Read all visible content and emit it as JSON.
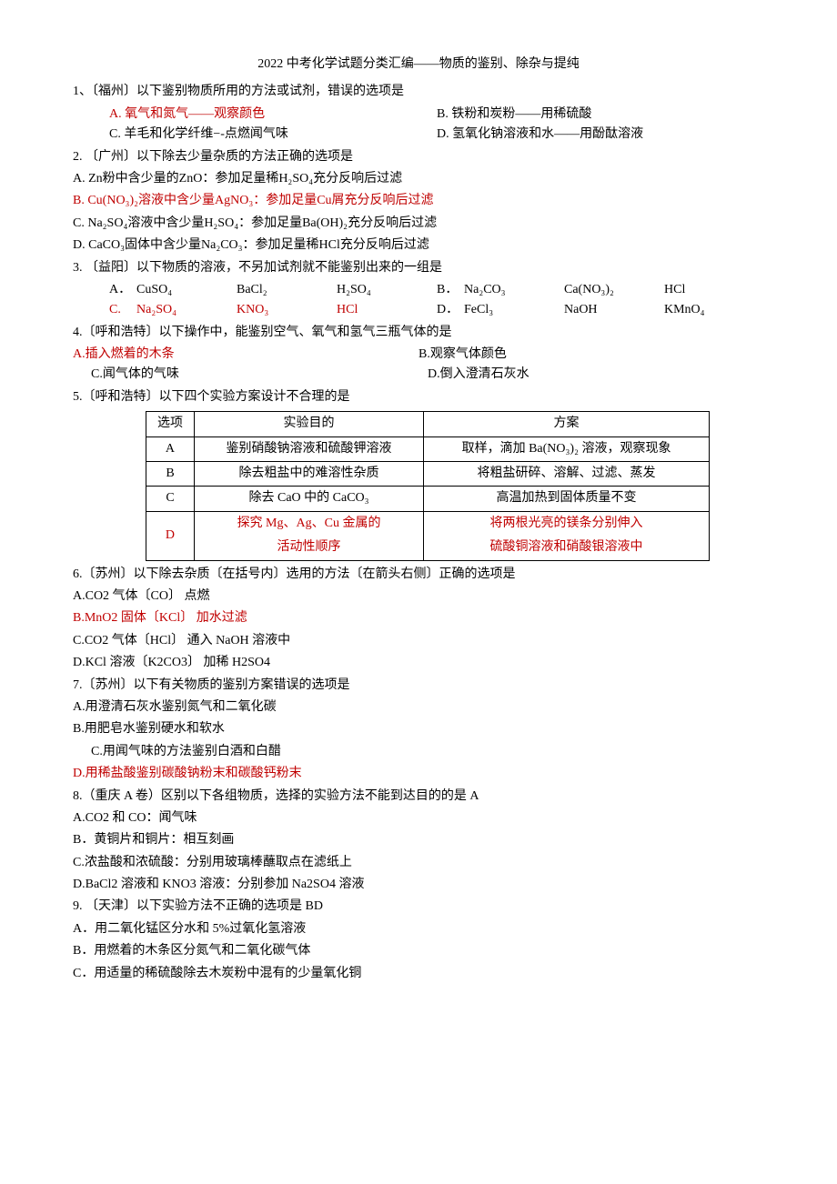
{
  "title": "2022 中考化学试题分类汇编——物质的鉴别、除杂与提纯",
  "q1": {
    "stem": "1、〔福州〕以下鉴别物质所用的方法或试剂，错误的选项是",
    "a": "A.  氧气和氮气——观察颜色",
    "b": "B.  铁粉和炭粉——用稀硫酸",
    "c": "C.  羊毛和化学纤维−-点燃闻气味",
    "d": "D.  氢氧化钠溶液和水——用酚酞溶液"
  },
  "q2": {
    "stem": "2.  〔广州〕以下除去少量杂质的方法正确的选项是",
    "a": "A. Zn粉中含少量的ZnO：参加足量稀H₂SO₄充分反响后过滤",
    "b": "B. Cu(NO₃)₂溶液中含少量AgNO₃：参加足量Cu屑充分反响后过滤",
    "c": "C. Na₂SO₄溶液中含少量H₂SO₄：参加足量Ba(OH)₂充分反响后过滤",
    "d": "D. CaCO₃固体中含少量Na₂CO₃：参加足量稀HCl充分反响后过滤"
  },
  "q3": {
    "stem": "3.  〔益阳〕以下物质的溶液，不另加试剂就不能鉴别出来的一组是",
    "rowA": {
      "lbl": "A．",
      "c1": "CuSO₄",
      "c2": "BaCl₂",
      "c3": "H₂SO₄"
    },
    "rowB": {
      "lbl": "B．",
      "c1": "Na₂CO₃",
      "c2": "Ca(NO₃)₂",
      "c3": "HCl"
    },
    "rowC": {
      "lbl": "C.",
      "c1": "Na₂SO₄",
      "c2": "KNO₃",
      "c3": "HCl"
    },
    "rowD": {
      "lbl": "D．",
      "c1": "FeCl₃",
      "c2": "NaOH",
      "c3": "KMnO₄"
    }
  },
  "q4": {
    "stem": "4.〔呼和浩特〕以下操作中，能鉴别空气、氧气和氢气三瓶气体的是",
    "a": "A.插入燃着的木条",
    "b": "B.观察气体颜色",
    "c": "C.闻气体的气味",
    "d": "D.倒入澄清石灰水"
  },
  "q5": {
    "stem": "5.〔呼和浩特〕以下四个实验方案设计不合理的是",
    "table_cols": [
      "选项",
      "实验目的",
      "方案"
    ],
    "rows": [
      {
        "opt": "A",
        "purpose": "鉴别硝酸钠溶液和硫酸钾溶液",
        "plan": "取样，滴加 Ba(NO₃)₂ 溶液，观察现象",
        "red": false
      },
      {
        "opt": "B",
        "purpose": "除去粗盐中的难溶性杂质",
        "plan": "将粗盐研碎、溶解、过滤、蒸发",
        "red": false
      },
      {
        "opt": "C",
        "purpose": "除去 CaO 中的 CaCO₃",
        "plan": "高温加热到固体质量不变",
        "red": false
      }
    ],
    "rowD": {
      "opt": "D",
      "purpose1": "探究 Mg、Ag、Cu 金属的",
      "purpose2": "活动性顺序",
      "plan1": "将两根光亮的镁条分别伸入",
      "plan2": "硫酸铜溶液和硝酸银溶液中"
    }
  },
  "q6": {
    "stem": "6.〔苏州〕以下除去杂质〔在括号内〕选用的方法〔在箭头右侧〕正确的选项是",
    "a": "A.CO2 气体〔CO〕    点燃",
    "b": "B.MnO2 固体〔KCl〕    加水过滤",
    "c": "C.CO2 气体〔HCl〕    通入 NaOH 溶液中",
    "d": "D.KCl 溶液〔K2CO3〕    加稀 H2SO4"
  },
  "q7": {
    "stem": "7.〔苏州〕以下有关物质的鉴别方案错误的选项是",
    "a": "A.用澄清石灰水鉴别氮气和二氧化碳",
    "b": "B.用肥皂水鉴别硬水和软水",
    "c": "C.用闻气味的方法鉴别白酒和白醋",
    "d": "D.用稀盐酸鉴别碳酸钠粉末和碳酸钙粉末"
  },
  "q8": {
    "stem": "8.（重庆 A 卷）区别以下各组物质，选择的实验方法不能到达目的的是 A",
    "a": "A.CO2 和 CO：闻气味",
    "b": "B．黄铜片和铜片：相互刻画",
    "c": "C.浓盐酸和浓硫酸：分别用玻璃棒蘸取点在滤纸上",
    "d": "D.BaCl2 溶液和 KNO3 溶液：分别参加 Na2SO4 溶液"
  },
  "q9": {
    "stem": "9.  〔天津〕以下实验方法不正确的选项是 BD",
    "a": "A．用二氧化锰区分水和 5%过氧化氢溶液",
    "b": "B．用燃着的木条区分氮气和二氧化碳气体",
    "c": "C．用适量的稀硫酸除去木炭粉中混有的少量氧化铜"
  }
}
